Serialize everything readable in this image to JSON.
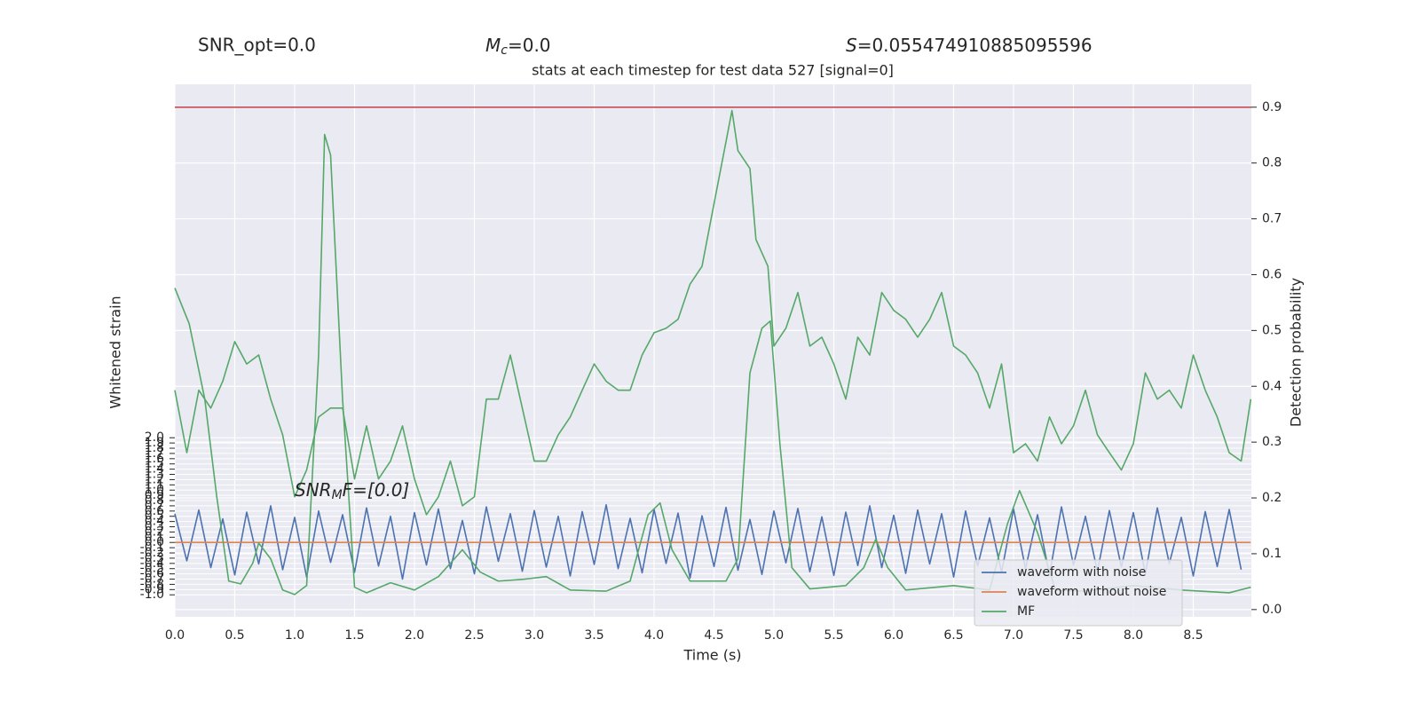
{
  "chart_data": {
    "type": "line",
    "header": {
      "snr_opt": "SNR_opt=0.0",
      "mc": {
        "base": "M",
        "sub": "c",
        "rest": "=0.0"
      },
      "s": {
        "base": "S",
        "rest": "=0.055474910885095596"
      }
    },
    "title": "stats at each timestep for test data 527 [signal=0]",
    "annotation": {
      "base": "SNR",
      "sub": "M",
      "rest": "F=[0.0]"
    },
    "x_label": "Time (s)",
    "y_label": "Whitened strain",
    "y2_label": "Detection probability",
    "xlim": [
      0,
      8.985
    ],
    "ylim": [
      -1.42,
      8.75
    ],
    "y2lim": [
      -0.013,
      0.941
    ],
    "xticks": [
      {
        "value": 0,
        "label": "0.0"
      },
      0.5,
      {
        "value": 1,
        "label": "1.0"
      },
      1.5,
      {
        "value": 2,
        "label": "2.0"
      },
      2.5,
      {
        "value": 3,
        "label": "3.0"
      },
      3.5,
      {
        "value": 4,
        "label": "4.0"
      },
      4.5,
      {
        "value": 5,
        "label": "5.0"
      },
      5.5,
      {
        "value": 6,
        "label": "6.0"
      },
      6.5,
      {
        "value": 7,
        "label": "7.0"
      },
      7.5,
      {
        "value": 8,
        "label": "8.0"
      },
      8.5
    ],
    "yticks": [
      {
        "value": -1,
        "label": "-1.0"
      },
      -0.9,
      -0.8,
      -0.7,
      -0.6,
      -0.5,
      -0.4,
      -0.3,
      -0.2,
      -0.1,
      {
        "value": 0,
        "label": "0.0"
      },
      0.1,
      0.2,
      0.3,
      0.4,
      0.5,
      0.6,
      0.7,
      0.8,
      0.9,
      {
        "value": 1,
        "label": "1.0"
      },
      1.1,
      1.2,
      1.3,
      1.4,
      1.5,
      1.6,
      1.7,
      1.8,
      1.9,
      {
        "value": 2,
        "label": "2.0"
      }
    ],
    "y2ticks": [
      {
        "value": 0,
        "label": "0.0"
      },
      0.1,
      0.2,
      0.3,
      0.4,
      0.5,
      0.6,
      0.7,
      0.8,
      0.9
    ],
    "grid": true,
    "legend": "lower right",
    "series": [
      {
        "name": "waveform with noise",
        "color": "#4c72b0",
        "axis": "y",
        "x": [
          0,
          0.1,
          0.2,
          0.3,
          0.4,
          0.5,
          0.6,
          0.7,
          0.8,
          0.9,
          1,
          1.1,
          1.2,
          1.3,
          1.4,
          1.5,
          1.6,
          1.7,
          1.8,
          1.9,
          2,
          2.1,
          2.2,
          2.3,
          2.4,
          2.5,
          2.6,
          2.7,
          2.8,
          2.9,
          3,
          3.1,
          3.2,
          3.3,
          3.4,
          3.5,
          3.6,
          3.7,
          3.8,
          3.9,
          4,
          4.1,
          4.2,
          4.3,
          4.4,
          4.5,
          4.6,
          4.7,
          4.8,
          4.9,
          5,
          5.1,
          5.2,
          5.3,
          5.4,
          5.5,
          5.6,
          5.7,
          5.8,
          5.9,
          6,
          6.1,
          6.2,
          6.3,
          6.4,
          6.5,
          6.6,
          6.7,
          6.8,
          6.9,
          7,
          7.1,
          7.2,
          7.3,
          7.4,
          7.5,
          7.6,
          7.7,
          7.8,
          7.9,
          8,
          8.1,
          8.2,
          8.3,
          8.4,
          8.5,
          8.6,
          8.7,
          8.8,
          8.9
        ],
        "values": [
          0.55,
          -0.35,
          0.62,
          -0.48,
          0.45,
          -0.62,
          0.58,
          -0.41,
          0.7,
          -0.52,
          0.48,
          -0.66,
          0.6,
          -0.38,
          0.53,
          -0.57,
          0.66,
          -0.45,
          0.5,
          -0.7,
          0.57,
          -0.43,
          0.64,
          -0.5,
          0.42,
          -0.6,
          0.68,
          -0.36,
          0.55,
          -0.55,
          0.61,
          -0.47,
          0.5,
          -0.64,
          0.59,
          -0.42,
          0.72,
          -0.5,
          0.46,
          -0.58,
          0.63,
          -0.4,
          0.56,
          -0.68,
          0.51,
          -0.46,
          0.67,
          -0.53,
          0.44,
          -0.61,
          0.6,
          -0.39,
          0.65,
          -0.56,
          0.49,
          -0.63,
          0.58,
          -0.44,
          0.7,
          -0.48,
          0.52,
          -0.59,
          0.62,
          -0.41,
          0.55,
          -0.66,
          0.6,
          -0.45,
          0.47,
          -0.57,
          0.64,
          -0.5,
          0.53,
          -0.62,
          0.68,
          -0.43,
          0.5,
          -0.55,
          0.61,
          -0.47,
          0.57,
          -0.6,
          0.66,
          -0.4,
          0.48,
          -0.64,
          0.59,
          -0.46,
          0.63,
          -0.52
        ]
      },
      {
        "name": "waveform without noise",
        "color": "#dd8452",
        "axis": "y",
        "x": [
          0,
          8.98
        ],
        "values": [
          0,
          0
        ]
      },
      {
        "name": "MF",
        "color": "#55a868",
        "axis": "y2",
        "x": [
          0,
          0.12,
          0.25,
          0.35,
          0.45,
          0.55,
          0.65,
          0.7,
          0.8,
          0.9,
          1,
          1.1,
          1.2,
          1.25,
          1.3,
          1.4,
          1.5,
          1.6,
          1.8,
          2,
          2.2,
          2.4,
          2.55,
          2.7,
          2.9,
          3.1,
          3.3,
          3.6,
          3.8,
          3.95,
          4.05,
          4.15,
          4.3,
          4.6,
          4.7,
          4.8,
          4.9,
          4.97,
          5.05,
          5.15,
          5.3,
          5.6,
          5.75,
          5.85,
          5.95,
          6.1,
          6.5,
          6.8,
          6.95,
          7.05,
          7.2,
          7.35,
          7.6,
          8,
          8.4,
          8.8,
          8.98
        ],
        "values": [
          0.576,
          0.512,
          0.377,
          0.202,
          0.051,
          0.046,
          0.083,
          0.119,
          0.091,
          0.035,
          0.027,
          0.043,
          0.456,
          0.851,
          0.814,
          0.377,
          0.04,
          0.03,
          0.048,
          0.035,
          0.059,
          0.107,
          0.067,
          0.051,
          0.054,
          0.059,
          0.035,
          0.033,
          0.051,
          0.17,
          0.191,
          0.107,
          0.051,
          0.051,
          0.091,
          0.424,
          0.504,
          0.517,
          0.297,
          0.075,
          0.037,
          0.043,
          0.075,
          0.126,
          0.075,
          0.035,
          0.043,
          0.035,
          0.154,
          0.213,
          0.138,
          0.035,
          0.033,
          0.043,
          0.035,
          0.03,
          0.04
        ]
      },
      {
        "color": "#55a868",
        "axis": "y2",
        "x": [
          0,
          0.1,
          0.2,
          0.3,
          0.4,
          0.5,
          0.6,
          0.7,
          0.8,
          0.9,
          1,
          1.1,
          1.2,
          1.3,
          1.4,
          1.5,
          1.6,
          1.7,
          1.8,
          1.9,
          2,
          2.1,
          2.2,
          2.3,
          2.4,
          2.5,
          2.6,
          2.7,
          2.8,
          2.9,
          3,
          3.1,
          3.2,
          3.3,
          3.4,
          3.5,
          3.6,
          3.7,
          3.8,
          3.9,
          4,
          4.1,
          4.2,
          4.3,
          4.4,
          4.5,
          4.6,
          4.65,
          4.7,
          4.8,
          4.85,
          4.95,
          5,
          5.1,
          5.2,
          5.3,
          5.4,
          5.5,
          5.6,
          5.7,
          5.8,
          5.9,
          6,
          6.1,
          6.2,
          6.3,
          6.4,
          6.5,
          6.6,
          6.7,
          6.8,
          6.9,
          7,
          7.1,
          7.2,
          7.3,
          7.4,
          7.5,
          7.6,
          7.7,
          7.8,
          7.9,
          8,
          8.1,
          8.2,
          8.3,
          8.4,
          8.5,
          8.6,
          8.7,
          8.8,
          8.9,
          8.98
        ],
        "values": [
          0.393,
          0.281,
          0.393,
          0.361,
          0.409,
          0.48,
          0.44,
          0.456,
          0.377,
          0.313,
          0.202,
          0.25,
          0.345,
          0.361,
          0.361,
          0.234,
          0.329,
          0.234,
          0.266,
          0.329,
          0.234,
          0.17,
          0.202,
          0.266,
          0.186,
          0.202,
          0.377,
          0.377,
          0.456,
          0.361,
          0.266,
          0.266,
          0.313,
          0.345,
          0.393,
          0.44,
          0.409,
          0.393,
          0.393,
          0.456,
          0.496,
          0.504,
          0.52,
          0.583,
          0.615,
          0.727,
          0.838,
          0.894,
          0.822,
          0.79,
          0.663,
          0.615,
          0.472,
          0.504,
          0.568,
          0.472,
          0.488,
          0.44,
          0.377,
          0.488,
          0.456,
          0.568,
          0.536,
          0.52,
          0.488,
          0.52,
          0.568,
          0.472,
          0.456,
          0.424,
          0.361,
          0.44,
          0.281,
          0.297,
          0.266,
          0.345,
          0.297,
          0.329,
          0.393,
          0.313,
          0.281,
          0.25,
          0.297,
          0.424,
          0.377,
          0.393,
          0.361,
          0.456,
          0.393,
          0.345,
          0.281,
          0.266,
          0.377
        ]
      },
      {
        "color": "#c44e52",
        "axis": "y2",
        "x": [
          0,
          8.985
        ],
        "values": [
          0.9,
          0.9
        ]
      }
    ]
  }
}
